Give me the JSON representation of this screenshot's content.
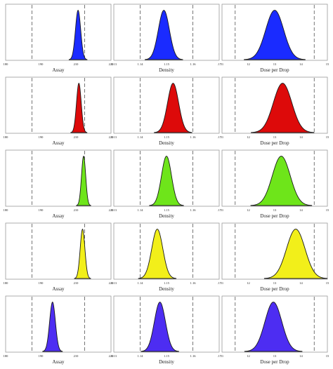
{
  "chart_data": {
    "type": "histogram-grid",
    "columns": [
      {
        "xlabel": "Assay",
        "xlim": [
          180,
          220
        ],
        "ticks": [
          "180",
          "190",
          "210",
          "220"
        ],
        "spec_limits": [
          190,
          210
        ]
      },
      {
        "xlabel": "Density",
        "xlim": [
          1.13,
          1.17
        ],
        "ticks": [
          "1.13",
          "1.14",
          "1.15",
          "1.16",
          ".17"
        ],
        "spec_limits": [
          1.14,
          1.16
        ]
      },
      {
        "xlabel": "Dose per Drop",
        "xlim": [
          11,
          15
        ],
        "ticks": [
          "11",
          "12",
          "13",
          "14",
          "15"
        ],
        "spec_limits": [
          11.5,
          14.5
        ]
      }
    ],
    "rows": [
      {
        "color": "#1a2bff",
        "peaks": [
          {
            "mean": 207.5,
            "sd": 1.0
          },
          {
            "mean": 1.149,
            "sd": 0.0021
          },
          {
            "mean": 13.0,
            "sd": 0.34
          }
        ]
      },
      {
        "color": "#dd0a0a",
        "peaks": [
          {
            "mean": 207.8,
            "sd": 0.9
          },
          {
            "mean": 1.1525,
            "sd": 0.0021
          },
          {
            "mean": 13.3,
            "sd": 0.35
          }
        ]
      },
      {
        "color": "#6ee51a",
        "peaks": [
          {
            "mean": 209.6,
            "sd": 0.8
          },
          {
            "mean": 1.15,
            "sd": 0.0019
          },
          {
            "mean": 13.25,
            "sd": 0.34
          }
        ]
      },
      {
        "color": "#f2ef1a",
        "peaks": [
          {
            "mean": 209.2,
            "sd": 0.9
          },
          {
            "mean": 1.1465,
            "sd": 0.0021
          },
          {
            "mean": 13.8,
            "sd": 0.35
          }
        ]
      },
      {
        "color": "#4d2df2",
        "peaks": [
          {
            "mean": 197.8,
            "sd": 1.1
          },
          {
            "mean": 1.1475,
            "sd": 0.0021
          },
          {
            "mean": 12.95,
            "sd": 0.32
          }
        ]
      }
    ]
  }
}
